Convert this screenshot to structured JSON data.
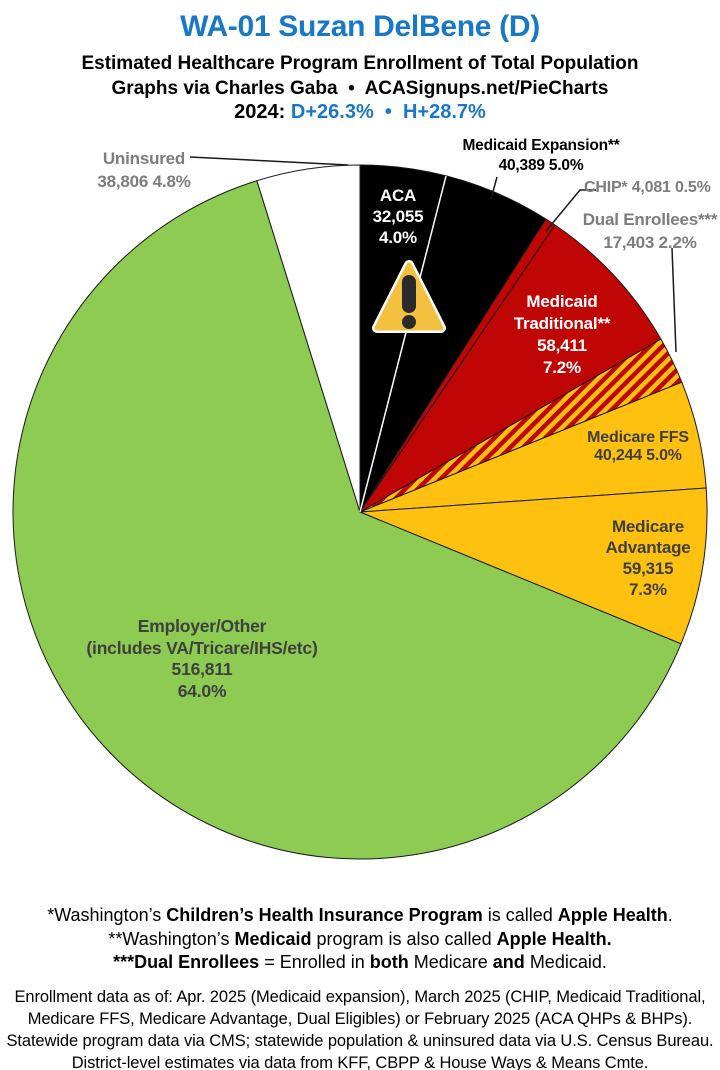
{
  "header": {
    "title": "WA-01 Suzan DelBene (D)",
    "title_color": "#1878C8",
    "subtitle": "Estimated Healthcare Program Enrollment of Total Population",
    "credit": "Graphs via Charles Gaba  •  ACASignups.net/PieCharts",
    "lean_segments": [
      {
        "t": "2024: ",
        "c": "#000000"
      },
      {
        "t": "D+26.3%",
        "c": "#1878C8"
      },
      {
        "t": "  •  ",
        "c": "#1878C8"
      },
      {
        "t": "H+28.7%",
        "c": "#1878C8"
      }
    ]
  },
  "chart_data": {
    "type": "pie",
    "title": "Estimated Healthcare Program Enrollment of Total Population",
    "units": "people enrolled",
    "start_angle_deg": 0,
    "direction": "clockwise",
    "slices": [
      {
        "id": "aca",
        "label": "ACA",
        "value": 32055,
        "value_text": "32,055",
        "pct": 4.0,
        "color": "#000000"
      },
      {
        "id": "medicaid-expansion",
        "label": "Medicaid Expansion**",
        "value": 40389,
        "value_text": "40,389",
        "pct": 5.0,
        "color": "#000000"
      },
      {
        "id": "chip",
        "label": "CHIP*",
        "value": 4081,
        "value_text": "4,081",
        "pct": 0.5,
        "color": "#C00505"
      },
      {
        "id": "medicaid-traditional",
        "label": "Medicaid Traditional**",
        "value": 58411,
        "value_text": "58,411",
        "pct": 7.2,
        "color": "#C00505"
      },
      {
        "id": "dual-enrollees",
        "label": "Dual Enrollees***",
        "value": 17403,
        "value_text": "17,403",
        "pct": 2.2,
        "color": "#C00505",
        "pattern": "diagonal-stripes",
        "pattern_colors": [
          "#C00505",
          "#FFC110"
        ]
      },
      {
        "id": "medicare-ffs",
        "label": "Medicare FFS",
        "value": 40244,
        "value_text": "40,244",
        "pct": 5.0,
        "color": "#FFC110"
      },
      {
        "id": "medicare-advantage",
        "label": "Medicare Advantage",
        "value": 59315,
        "value_text": "59,315",
        "pct": 7.3,
        "color": "#FFC110"
      },
      {
        "id": "employer-other",
        "label": "Employer/Other (includes VA/Tricare/IHS/etc)",
        "value": 516811,
        "value_text": "516,811",
        "pct": 64.0,
        "color": "#8DCB52"
      },
      {
        "id": "uninsured",
        "label": "Uninsured",
        "value": 38806,
        "value_text": "38,806",
        "pct": 4.8,
        "color": "#FFFFFF"
      }
    ]
  },
  "labels": {
    "uninsured": {
      "l1": "Uninsured",
      "l2": "38,806 4.8%"
    },
    "medicaid_expansion": {
      "l1": "Medicaid Expansion**",
      "l2": "40,389 5.0%"
    },
    "chip": {
      "l1": "CHIP* 4,081 0.5%"
    },
    "dual": {
      "l1": "Dual Enrollees***",
      "l2": "17,403 2.2%"
    },
    "aca": {
      "l1": "ACA",
      "l2": "32,055",
      "l3": "4.0%"
    },
    "medicaid_traditional": {
      "l1": "Medicaid",
      "l2": "Traditional**",
      "l3": "58,411",
      "l4": "7.2%"
    },
    "medicare_ffs": {
      "l1": "Medicare FFS",
      "l2": "40,244 5.0%"
    },
    "medicare_advantage": {
      "l1": "Medicare",
      "l2": "Advantage",
      "l3": "59,315",
      "l4": "7.3%"
    },
    "employer": {
      "l1": "Employer/Other",
      "l2": "(includes VA/Tricare/IHS/etc)",
      "l3": "516,811",
      "l4": "64.0%"
    }
  },
  "footnotes": {
    "line1": [
      {
        "t": "*Washington’s "
      },
      {
        "t": "Children’s Health Insurance Program",
        "b": true
      },
      {
        "t": " is called "
      },
      {
        "t": "Apple Health",
        "b": true
      },
      {
        "t": "."
      }
    ],
    "line2": [
      {
        "t": "**Washington’s "
      },
      {
        "t": "Medicaid",
        "b": true
      },
      {
        "t": " program is also called "
      },
      {
        "t": "Apple Health.",
        "b": true
      }
    ],
    "line3": [
      {
        "t": "***Dual Enrollees",
        "b": true
      },
      {
        "t": " = Enrolled in "
      },
      {
        "t": "both",
        "b": true
      },
      {
        "t": " Medicare "
      },
      {
        "t": "and",
        "b": true
      },
      {
        "t": " Medicaid."
      }
    ]
  },
  "source": {
    "line1": "Enrollment data as of: Apr. 2025 (Medicaid expansion), March 2025 (CHIP, Medicaid Traditional,",
    "line2": "Medicare FFS, Medicare Advantage, Dual Eligibles) or February 2025 (ACA QHPs & BHPs).",
    "line3": "Statewide program data via CMS; statewide population & uninsured data via U.S. Census Bureau.",
    "line4": "District-level estimates via data from KFF, CBPP & House Ways & Means Cmte."
  },
  "warning_icon": {
    "fill": "#F3C13F",
    "border": "#FFFFFF",
    "glyph_color": "#2A2A2A"
  }
}
